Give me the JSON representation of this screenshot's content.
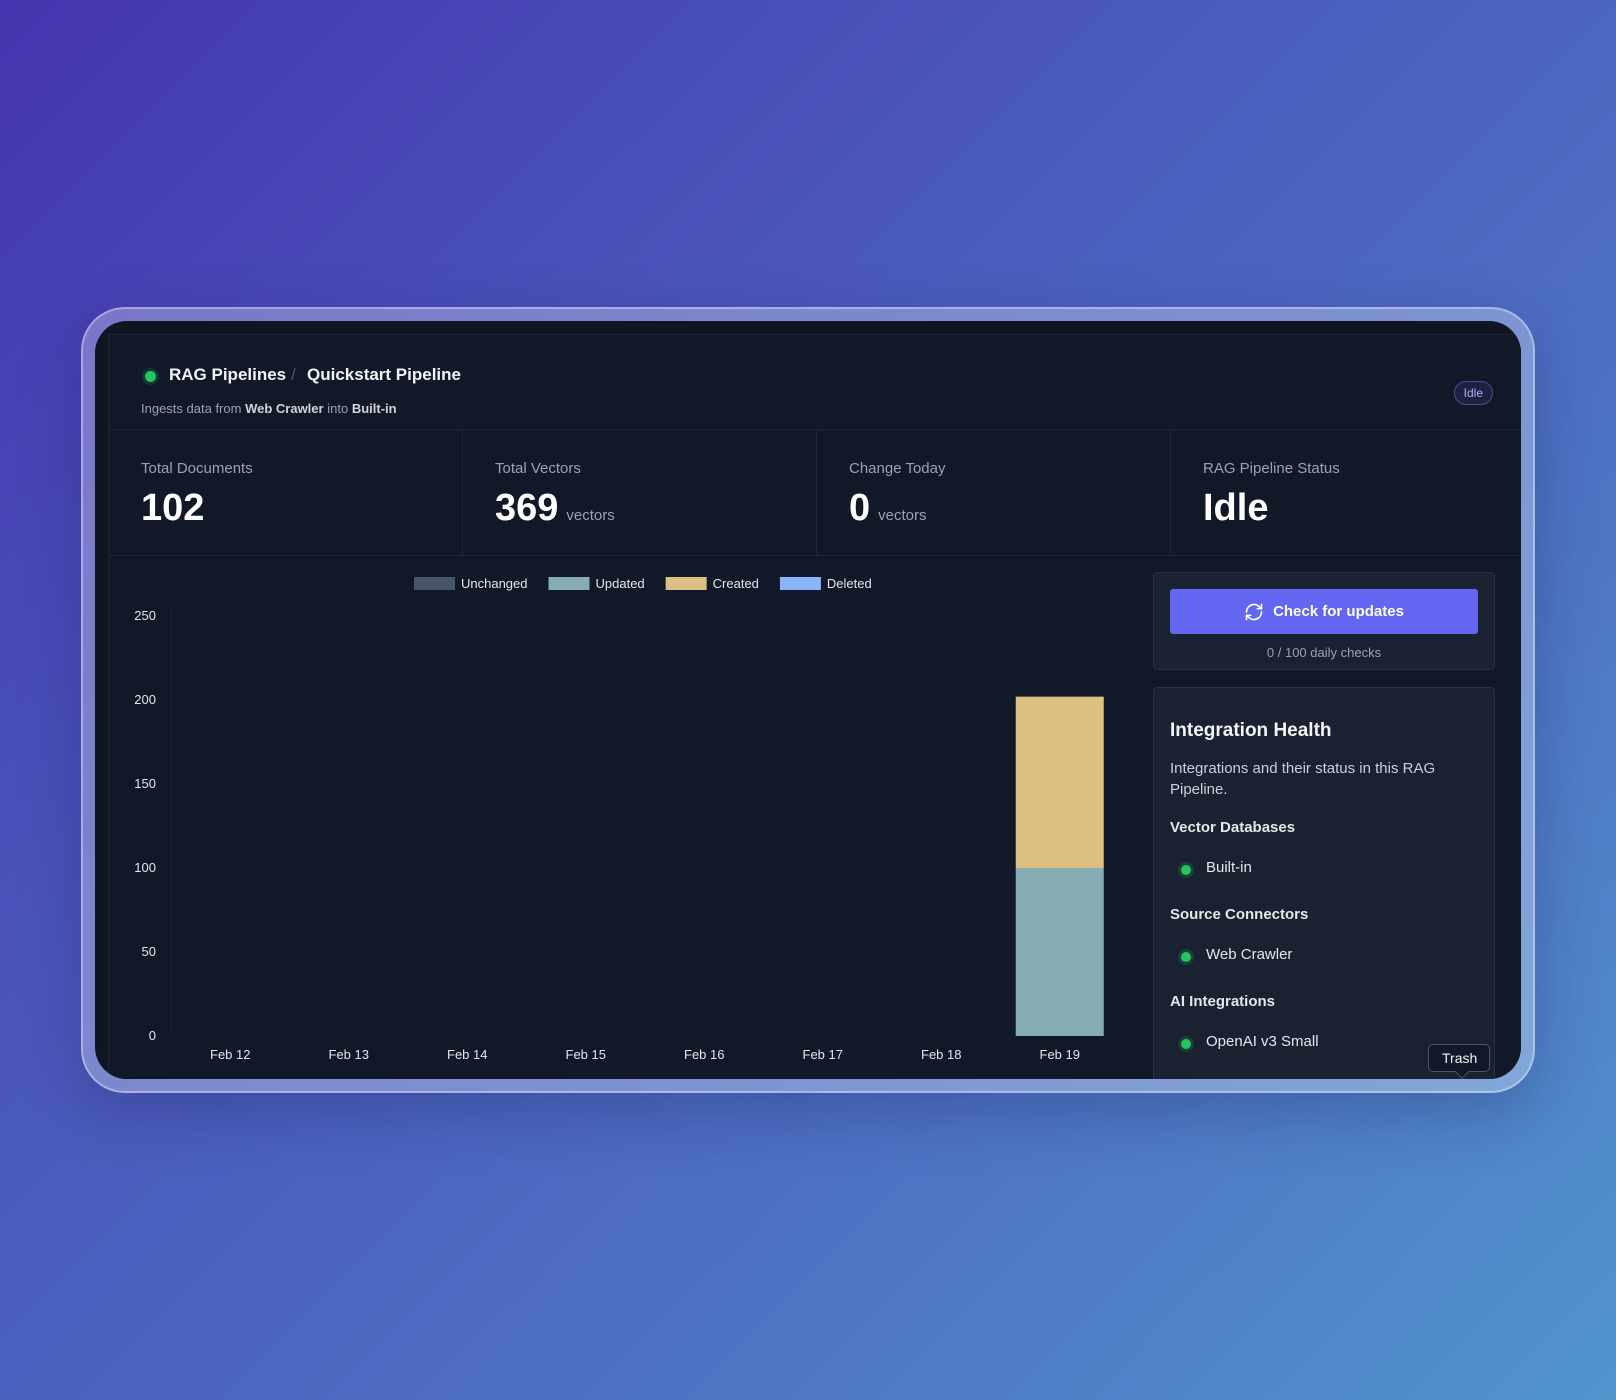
{
  "header": {
    "breadcrumb_root": "RAG Pipelines",
    "breadcrumb_sep": "/",
    "breadcrumb_current": "Quickstart Pipeline",
    "desc_prefix": "Ingests data from",
    "desc_source": "Web Crawler",
    "desc_mid": "into",
    "desc_target": "Built-in",
    "status_badge": "Idle"
  },
  "stats": [
    {
      "label": "Total Documents",
      "value": "102",
      "unit": ""
    },
    {
      "label": "Total Vectors",
      "value": "369",
      "unit": "vectors"
    },
    {
      "label": "Change Today",
      "value": "0",
      "unit": "vectors"
    },
    {
      "label": "RAG Pipeline Status",
      "value": "Idle",
      "unit": ""
    }
  ],
  "updates": {
    "button_label": "Check for updates",
    "icon": "refresh-icon",
    "daily_checks": "0 / 100 daily checks"
  },
  "integration_health": {
    "title": "Integration Health",
    "description": "Integrations and their status in this RAG Pipeline.",
    "sections": [
      {
        "heading": "Vector Databases",
        "item": "Built-in",
        "status": "healthy"
      },
      {
        "heading": "Source Connectors",
        "item": "Web Crawler",
        "status": "healthy"
      },
      {
        "heading": "AI Integrations",
        "item": "OpenAI v3 Small",
        "status": "healthy"
      }
    ]
  },
  "tooltip": "Trash",
  "colors": {
    "accent": "#6366f1",
    "healthy": "#22c55e",
    "unchanged": "#475569",
    "updated": "#86adb3",
    "created": "#dcbf82",
    "deleted": "#8ab4f8"
  },
  "chart_data": {
    "type": "bar",
    "stacked": true,
    "categories": [
      "Feb 12",
      "Feb 13",
      "Feb 14",
      "Feb 15",
      "Feb 16",
      "Feb 17",
      "Feb 18",
      "Feb 19"
    ],
    "series": [
      {
        "name": "Unchanged",
        "color": "#475569",
        "values": [
          0,
          0,
          0,
          0,
          0,
          0,
          0,
          0
        ]
      },
      {
        "name": "Updated",
        "color": "#86adb3",
        "values": [
          0,
          0,
          0,
          0,
          0,
          0,
          0,
          100
        ]
      },
      {
        "name": "Created",
        "color": "#dcbf82",
        "values": [
          0,
          0,
          0,
          0,
          0,
          0,
          0,
          102
        ]
      },
      {
        "name": "Deleted",
        "color": "#8ab4f8",
        "values": [
          0,
          0,
          0,
          0,
          0,
          0,
          0,
          0
        ]
      }
    ],
    "yticks": [
      0,
      50,
      100,
      150,
      200,
      250
    ],
    "ylim": [
      0,
      250
    ],
    "legend_position": "top-center",
    "grid": false
  }
}
